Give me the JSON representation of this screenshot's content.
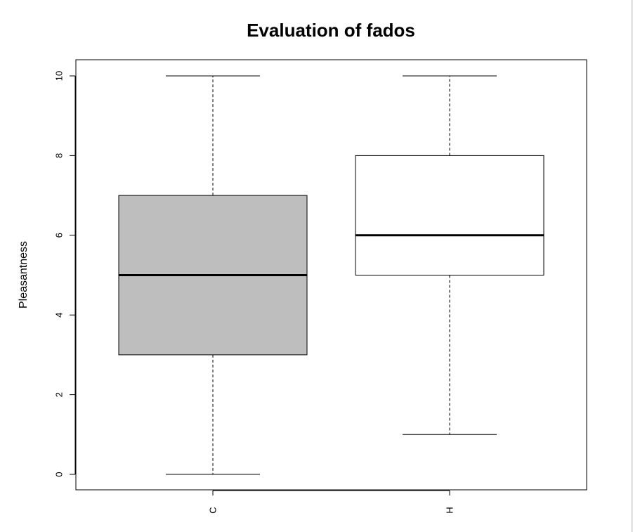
{
  "chart_data": {
    "type": "boxplot",
    "title": "Evaluation of fados",
    "xlabel": "",
    "ylabel": "Pleasantness",
    "ylim": [
      -0.4,
      10.4
    ],
    "yticks": [
      0,
      2,
      4,
      6,
      8,
      10
    ],
    "categories": [
      "C",
      "H"
    ],
    "boxes": [
      {
        "name": "C",
        "min": 0,
        "q1": 3,
        "median": 5,
        "q3": 7,
        "max": 10,
        "fill": "#bebebe"
      },
      {
        "name": "H",
        "min": 1,
        "q1": 5,
        "median": 6,
        "q3": 8,
        "max": 10,
        "fill": "#ffffff"
      }
    ],
    "grid": false
  }
}
